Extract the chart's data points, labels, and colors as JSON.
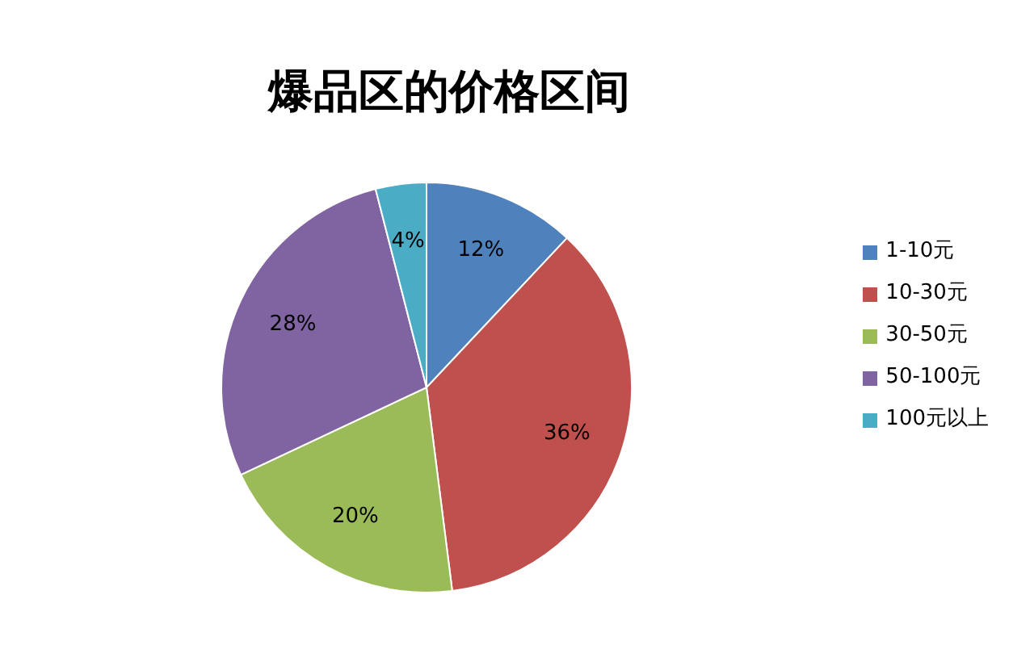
{
  "chart_data": {
    "type": "pie",
    "title": "爆品区的价格区间",
    "categories": [
      "1-10元",
      "10-30元",
      "30-50元",
      "50-100元",
      "100元以上"
    ],
    "values": [
      12,
      36,
      20,
      28,
      4
    ],
    "colors": [
      "#4f81bd",
      "#c0504d",
      "#9bbb59",
      "#8064a2",
      "#4bacc6"
    ],
    "value_labels": [
      "12%",
      "36%",
      "20%",
      "28%",
      "4%"
    ],
    "legend": "right"
  }
}
